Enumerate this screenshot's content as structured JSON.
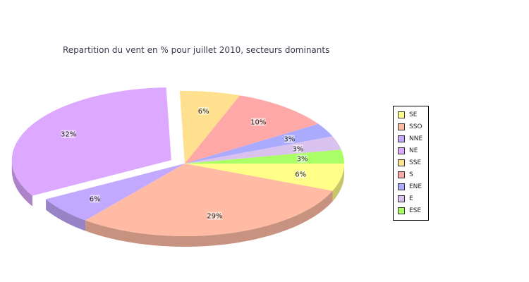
{
  "chart_data": {
    "type": "pie",
    "title": "Repartition du vent en % pour juillet 2010, secteurs dominants",
    "categories": [
      "SE",
      "SSO",
      "NNE",
      "NE",
      "SSE",
      "S",
      "ENE",
      "E",
      "ESE"
    ],
    "values": [
      6,
      29,
      6,
      32,
      6,
      10,
      3,
      3,
      3
    ],
    "labels": [
      "6%",
      "29%",
      "6%",
      "32%",
      "6%",
      "10%",
      "3%",
      "3%",
      "3%"
    ],
    "colors": [
      "#ffff88",
      "#ffbba3",
      "#c3a8ff",
      "#dda8ff",
      "#ffe08e",
      "#ffa8a8",
      "#aaaaff",
      "#d9c2ee",
      "#aaff66"
    ],
    "exploded": "NE",
    "legend_placement": "right"
  }
}
